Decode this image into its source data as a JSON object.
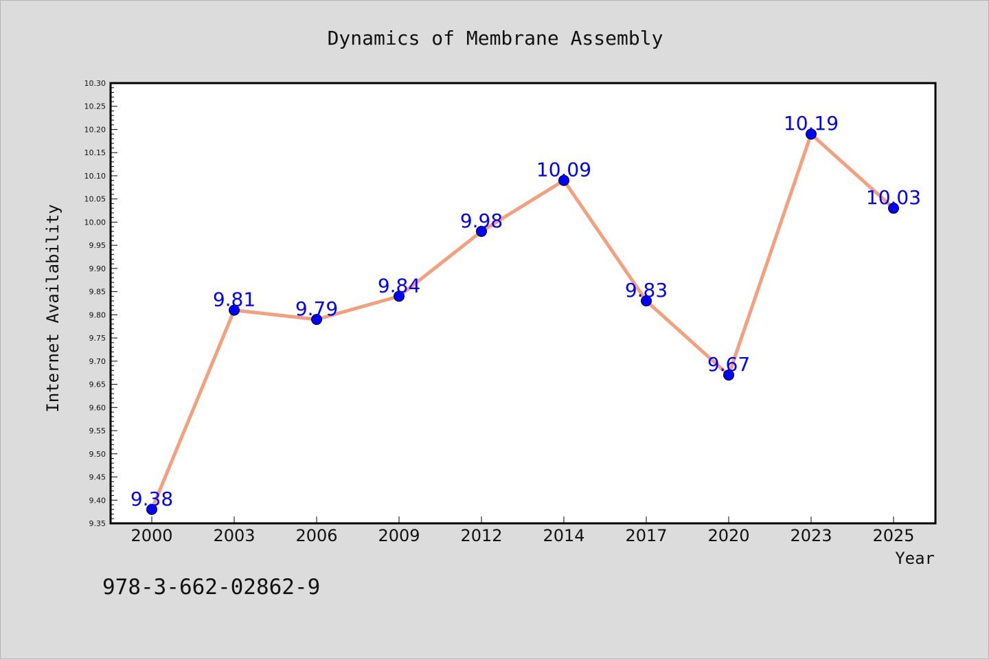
{
  "chart_data": {
    "type": "line",
    "title": "Dynamics of Membrane Assembly",
    "xlabel": "Year",
    "ylabel": "Internet Availability",
    "categories": [
      "2000",
      "2003",
      "2006",
      "2009",
      "2012",
      "2014",
      "2017",
      "2020",
      "2023",
      "2025"
    ],
    "series": [
      {
        "values": [
          9.38,
          9.81,
          9.79,
          9.84,
          9.98,
          10.09,
          9.83,
          9.67,
          10.19,
          10.03
        ]
      }
    ],
    "data_labels": [
      "9.38",
      "9.81",
      "9.79",
      "9.84",
      "9.98",
      "10.09",
      "9.83",
      "9.67",
      "10.19",
      "10.03"
    ],
    "ylim": [
      9.35,
      10.3
    ],
    "y_tick_labels": [
      "9.35",
      "9.40",
      "9.45",
      "9.50",
      "9.55",
      "9.60",
      "9.65",
      "9.70",
      "9.75",
      "9.80",
      "9.85",
      "9.90",
      "9.95",
      "10.00",
      "10.05",
      "10.10",
      "10.15",
      "10.20",
      "10.25",
      "10.30"
    ],
    "grid": false,
    "line_color": "#f4a07e",
    "marker_color": "#0000ff",
    "label_color": "#0000ff",
    "plot_background": "#ffffff",
    "figure_background": "#dcdcdc"
  },
  "annotation": "978-3-662-02862-9"
}
